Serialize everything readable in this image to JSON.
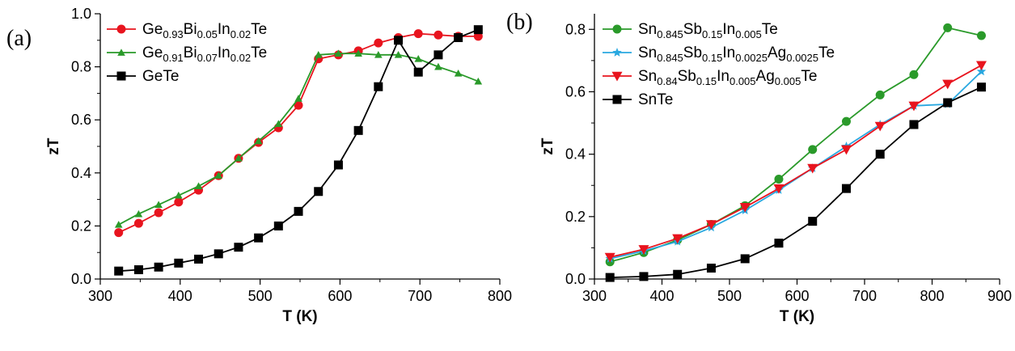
{
  "chart_data": [
    {
      "type": "line",
      "panel_label": "(a)",
      "xlabel": "T (K)",
      "ylabel": "zT",
      "xlim": [
        300,
        800
      ],
      "ylim": [
        0,
        1.0
      ],
      "xticks": [
        "300",
        "400",
        "500",
        "600",
        "700",
        "800"
      ],
      "yticks": [
        "0.0",
        "0.2",
        "0.4",
        "0.6",
        "0.8",
        "1.0"
      ],
      "grid": false,
      "legend_position": "top-left",
      "series": [
        {
          "name": "Ge0.93Bi0.05In0.02Te",
          "name_parts": [
            [
              "Ge",
              ""
            ],
            [
              "0.93",
              "sub"
            ],
            [
              "Bi",
              ""
            ],
            [
              "0.05",
              "sub"
            ],
            [
              "In",
              ""
            ],
            [
              "0.02",
              "sub"
            ],
            [
              "Te",
              ""
            ]
          ],
          "color": "#e8141e",
          "marker": "circle",
          "x": [
            323,
            348,
            373,
            398,
            423,
            448,
            473,
            498,
            523,
            548,
            573,
            598,
            623,
            648,
            673,
            698,
            723,
            748,
            773
          ],
          "y": [
            0.175,
            0.21,
            0.25,
            0.29,
            0.335,
            0.39,
            0.455,
            0.515,
            0.57,
            0.655,
            0.83,
            0.845,
            0.86,
            0.89,
            0.91,
            0.925,
            0.92,
            0.915,
            0.915
          ]
        },
        {
          "name": "Ge0.91Bi0.07In0.02Te",
          "name_parts": [
            [
              "Ge",
              ""
            ],
            [
              "0.91",
              "sub"
            ],
            [
              "Bi",
              ""
            ],
            [
              "0.07",
              "sub"
            ],
            [
              "In",
              ""
            ],
            [
              "0.02",
              "sub"
            ],
            [
              "Te",
              ""
            ]
          ],
          "color": "#2a9a2a",
          "marker": "triangle-up",
          "x": [
            323,
            348,
            373,
            398,
            423,
            448,
            473,
            498,
            523,
            548,
            573,
            598,
            623,
            648,
            673,
            698,
            723,
            748,
            773
          ],
          "y": [
            0.205,
            0.245,
            0.28,
            0.315,
            0.35,
            0.39,
            0.455,
            0.52,
            0.585,
            0.68,
            0.845,
            0.85,
            0.85,
            0.845,
            0.845,
            0.83,
            0.8,
            0.775,
            0.745
          ]
        },
        {
          "name": "GeTe",
          "name_parts": [
            [
              "GeTe",
              ""
            ]
          ],
          "color": "#000000",
          "marker": "square",
          "x": [
            323,
            348,
            373,
            398,
            423,
            448,
            473,
            498,
            523,
            548,
            573,
            598,
            623,
            648,
            673,
            698,
            723,
            748,
            773
          ],
          "y": [
            0.03,
            0.035,
            0.045,
            0.06,
            0.075,
            0.095,
            0.12,
            0.155,
            0.2,
            0.255,
            0.33,
            0.43,
            0.56,
            0.725,
            0.9,
            0.78,
            0.845,
            0.91,
            0.94
          ]
        }
      ]
    },
    {
      "type": "line",
      "panel_label": "(b)",
      "xlabel": "T (K)",
      "ylabel": "zT",
      "xlim": [
        300,
        900
      ],
      "ylim": [
        0,
        0.85
      ],
      "xticks": [
        "300",
        "400",
        "500",
        "600",
        "700",
        "800",
        "900"
      ],
      "yticks": [
        "0.0",
        "0.2",
        "0.4",
        "0.6",
        "0.8"
      ],
      "grid": false,
      "legend_position": "top-left",
      "series": [
        {
          "name": "Sn0.845Sb0.15In0.005Te",
          "name_parts": [
            [
              "Sn",
              ""
            ],
            [
              "0.845",
              "sub"
            ],
            [
              "Sb",
              ""
            ],
            [
              "0.15",
              "sub"
            ],
            [
              "In",
              ""
            ],
            [
              "0.005",
              "sub"
            ],
            [
              "Te",
              ""
            ]
          ],
          "color": "#2a9a2a",
          "marker": "circle",
          "x": [
            323,
            373,
            423,
            473,
            523,
            573,
            623,
            673,
            723,
            773,
            823,
            873
          ],
          "y": [
            0.055,
            0.085,
            0.125,
            0.175,
            0.235,
            0.32,
            0.415,
            0.505,
            0.59,
            0.655,
            0.805,
            0.78
          ]
        },
        {
          "name": "Sn0.845Sb0.15In0.0025Ag0.0025Te",
          "name_parts": [
            [
              "Sn",
              ""
            ],
            [
              "0.845",
              "sub"
            ],
            [
              "Sb",
              ""
            ],
            [
              "0.15",
              "sub"
            ],
            [
              "In",
              ""
            ],
            [
              "0.0025",
              "sub"
            ],
            [
              "Ag",
              ""
            ],
            [
              "0.0025",
              "sub"
            ],
            [
              "Te",
              ""
            ]
          ],
          "color": "#29a8e0",
          "marker": "star",
          "x": [
            323,
            373,
            423,
            473,
            523,
            573,
            623,
            673,
            723,
            773,
            823,
            873
          ],
          "y": [
            0.065,
            0.09,
            0.12,
            0.165,
            0.22,
            0.285,
            0.355,
            0.425,
            0.495,
            0.555,
            0.56,
            0.665
          ]
        },
        {
          "name": "Sn0.84Sb0.15In0.005Ag0.005Te",
          "name_parts": [
            [
              "Sn",
              ""
            ],
            [
              "0.84",
              "sub"
            ],
            [
              "Sb",
              ""
            ],
            [
              "0.15",
              "sub"
            ],
            [
              "In",
              ""
            ],
            [
              "0.005",
              "sub"
            ],
            [
              "Ag",
              ""
            ],
            [
              "0.005",
              "sub"
            ],
            [
              "Te",
              ""
            ]
          ],
          "color": "#e8141e",
          "marker": "triangle-down",
          "x": [
            323,
            373,
            423,
            473,
            523,
            573,
            623,
            673,
            723,
            773,
            823,
            873
          ],
          "y": [
            0.07,
            0.095,
            0.13,
            0.175,
            0.23,
            0.29,
            0.355,
            0.415,
            0.49,
            0.555,
            0.625,
            0.685
          ]
        },
        {
          "name": "SnTe",
          "name_parts": [
            [
              "SnTe",
              ""
            ]
          ],
          "color": "#000000",
          "marker": "square",
          "x": [
            323,
            373,
            423,
            473,
            523,
            573,
            623,
            673,
            723,
            773,
            823,
            873
          ],
          "y": [
            0.005,
            0.008,
            0.015,
            0.035,
            0.065,
            0.115,
            0.185,
            0.29,
            0.4,
            0.495,
            0.565,
            0.615
          ]
        }
      ]
    }
  ]
}
